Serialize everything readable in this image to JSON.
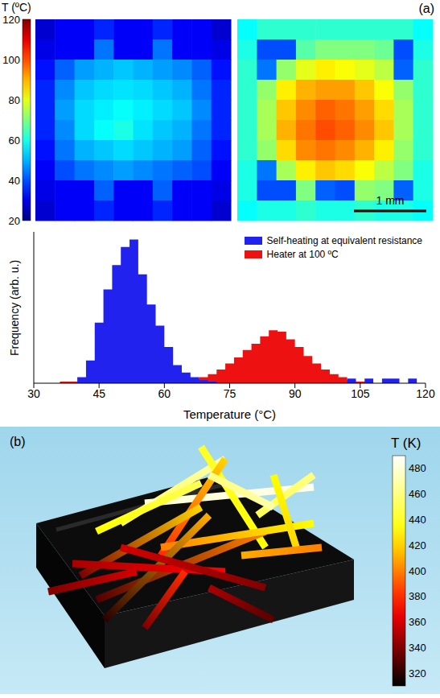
{
  "chart_data": [
    {
      "type": "heatmap",
      "panel": "(a)",
      "scale_bar": "1 mm",
      "colorbar": {
        "title": "T (ºC)",
        "range": [
          20,
          120
        ],
        "ticks": [
          20,
          40,
          60,
          80,
          100,
          120
        ]
      },
      "images": [
        {
          "cells": [
            [
              28,
              32,
              32,
              36,
              32,
              32,
              36,
              32,
              32,
              28
            ],
            [
              30,
              32,
              32,
              44,
              32,
              32,
              44,
              32,
              32,
              30
            ],
            [
              34,
              42,
              48,
              50,
              52,
              50,
              48,
              46,
              42,
              34
            ],
            [
              36,
              46,
              52,
              54,
              55,
              54,
              52,
              50,
              44,
              36
            ],
            [
              36,
              48,
              54,
              56,
              58,
              56,
              54,
              52,
              46,
              36
            ],
            [
              36,
              46,
              54,
              58,
              60,
              55,
              52,
              50,
              44,
              36
            ],
            [
              34,
              44,
              50,
              52,
              54,
              52,
              50,
              48,
              42,
              34
            ],
            [
              32,
              40,
              44,
              46,
              48,
              46,
              44,
              42,
              40,
              32
            ],
            [
              30,
              32,
              32,
              42,
              32,
              32,
              42,
              32,
              32,
              30
            ],
            [
              28,
              32,
              32,
              36,
              32,
              32,
              36,
              32,
              32,
              28
            ]
          ]
        },
        {
          "cells": [
            [
              58,
              62,
              62,
              62,
              62,
              62,
              62,
              62,
              62,
              58
            ],
            [
              60,
              40,
              40,
              66,
              70,
              70,
              70,
              68,
              40,
              60
            ],
            [
              62,
              44,
              72,
              80,
              84,
              82,
              80,
              76,
              42,
              62
            ],
            [
              62,
              72,
              84,
              90,
              92,
              92,
              88,
              82,
              72,
              62
            ],
            [
              62,
              74,
              88,
              94,
              98,
              96,
              92,
              86,
              74,
              62
            ],
            [
              62,
              74,
              90,
              96,
              100,
              98,
              94,
              88,
              74,
              62
            ],
            [
              62,
              72,
              86,
              94,
              96,
              94,
              90,
              84,
              72,
              62
            ],
            [
              60,
              44,
              74,
              84,
              88,
              86,
              82,
              76,
              70,
              60
            ],
            [
              60,
              40,
              40,
              70,
              42,
              40,
              72,
              70,
              42,
              60
            ],
            [
              58,
              60,
              60,
              62,
              60,
              60,
              62,
              60,
              60,
              58
            ]
          ]
        }
      ]
    },
    {
      "type": "histogram",
      "xlabel": "Temperature (°C)",
      "ylabel": "Frequency (arb. u.)",
      "bins": [
        36,
        38,
        40,
        42,
        44,
        46,
        48,
        50,
        52,
        54,
        56,
        58,
        60,
        62,
        64,
        66,
        68,
        70,
        72,
        74,
        76,
        78,
        80,
        82,
        84,
        86,
        88,
        90,
        92,
        94,
        96,
        98,
        100,
        102,
        104,
        106,
        108,
        110,
        112,
        114,
        116,
        118,
        120
      ],
      "series": [
        {
          "name": "Self-heating at equivalent resistance",
          "color": "#2222ee",
          "values": [
            0,
            0,
            4,
            15,
            40,
            62,
            78,
            90,
            95,
            72,
            52,
            38,
            24,
            12,
            7,
            4,
            2,
            1,
            0,
            0,
            0,
            0,
            0,
            0,
            0,
            0,
            0,
            0,
            0,
            0,
            0,
            0,
            0,
            3,
            0,
            3,
            0,
            3,
            3,
            0,
            3,
            0
          ]
        },
        {
          "name": "Heater at 100 ºC",
          "color": "#ee1111",
          "values": [
            1,
            1,
            1,
            1,
            1,
            1,
            1,
            1,
            1,
            1,
            1,
            1,
            2,
            2,
            3,
            3,
            4,
            6,
            9,
            13,
            17,
            22,
            26,
            31,
            35,
            34,
            29,
            24,
            18,
            13,
            9,
            6,
            4,
            2,
            1,
            1,
            0,
            0,
            0,
            0,
            0,
            0
          ]
        }
      ],
      "xlim": [
        30,
        120
      ],
      "xticks": [
        30,
        45,
        60,
        75,
        90,
        105,
        120
      ],
      "ylim": [
        0,
        100
      ],
      "tick_labels": "x",
      "legend": "upper right"
    },
    {
      "type": "3d_render",
      "panel": "(b)",
      "colorbar": {
        "title": "T (K)",
        "range": [
          310,
          490
        ],
        "ticks": [
          320,
          340,
          360,
          380,
          400,
          420,
          440,
          460,
          480
        ]
      },
      "rods": [
        {
          "temperatures": [
            450,
            470
          ]
        },
        {
          "temperatures": [
            480,
            485
          ]
        },
        {
          "temperatures": [
            440,
            430
          ]
        },
        {
          "temperatures": [
            420,
            380
          ]
        },
        {
          "temperatures": [
            340,
            420
          ]
        },
        {
          "temperatures": [
            330,
            400
          ]
        },
        {
          "temperatures": [
            400,
            430
          ]
        },
        {
          "temperatures": [
            450,
            460
          ]
        },
        {
          "temperatures": [
            460,
            470
          ]
        },
        {
          "temperatures": [
            430,
            420
          ]
        },
        {
          "temperatures": [
            320,
            410
          ]
        },
        {
          "temperatures": [
            350,
            370
          ]
        },
        {
          "temperatures": [
            380,
            340
          ]
        },
        {
          "temperatures": [
            360,
            340
          ]
        },
        {
          "temperatures": [
            410,
            400
          ]
        },
        {
          "temperatures": [
            340,
            360
          ]
        },
        {
          "temperatures": [
            350,
            330
          ]
        },
        {
          "temperatures": [
            430,
            450
          ]
        }
      ]
    }
  ]
}
